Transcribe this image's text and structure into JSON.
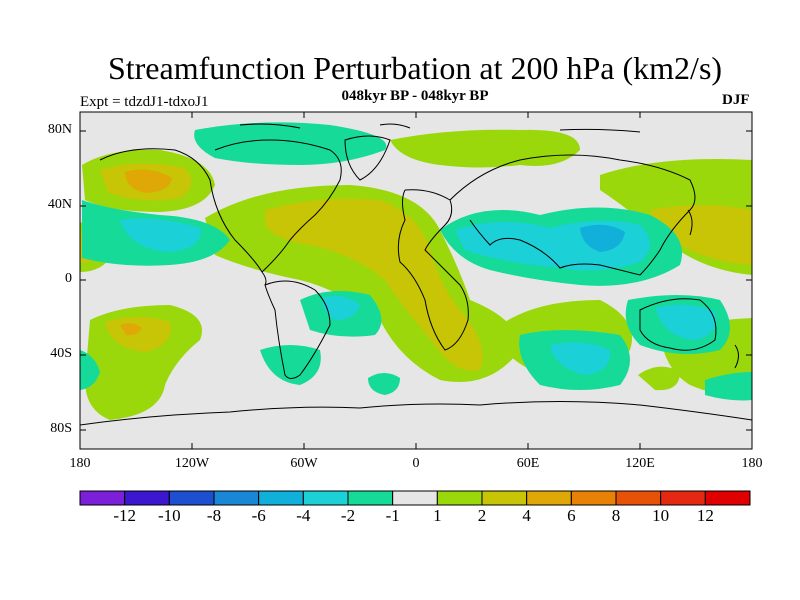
{
  "title": "Streamfunction Perturbation at 200 hPa (km2/s)",
  "subtitle": "048kyr BP - 048kyr BP",
  "experiment": "Expt = tdzdJ1-tdxoJ1",
  "season": "DJF",
  "latitude_labels": [
    "80N",
    "40N",
    "0",
    "40S",
    "80S"
  ],
  "longitude_labels": [
    "180",
    "120W",
    "60W",
    "0",
    "60E",
    "120E",
    "180"
  ],
  "colorbar": {
    "labels": [
      "-12",
      "-10",
      "-8",
      "-6",
      "-4",
      "-2",
      "-1",
      "1",
      "2",
      "4",
      "6",
      "8",
      "10",
      "12"
    ],
    "colors": [
      "#7b1fd8",
      "#3b18d0",
      "#1e4fd0",
      "#1a86d6",
      "#10b0da",
      "#1cd0d8",
      "#16da98",
      "#e6e6e6",
      "#9ad80c",
      "#c8c406",
      "#dfa806",
      "#e88206",
      "#e65208",
      "#e42812",
      "#e00000"
    ]
  },
  "map_colors": {
    "background": "#e6e6e6",
    "pos_1_2": "#9ad80c",
    "pos_2_4": "#c8c406",
    "pos_4_6": "#dfa806",
    "neg_1_2": "#16da98",
    "neg_2_4": "#1cd0d8",
    "neg_4_6": "#10b0da",
    "coast": "#000000"
  }
}
